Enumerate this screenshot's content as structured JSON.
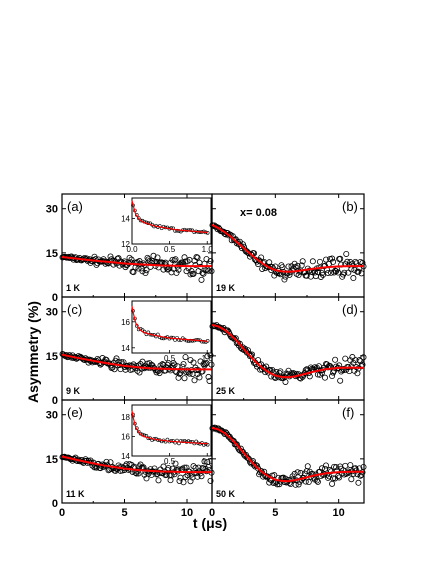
{
  "chart_data": {
    "type": "scatter",
    "xlabel": "t (μs)",
    "ylabel": "Asymmetry (%)",
    "annotation": "x= 0.08",
    "xlim": [
      0,
      12
    ],
    "ylim": [
      0,
      35
    ],
    "xticks": [
      0,
      5,
      10
    ],
    "yticks": [
      0,
      15,
      30
    ],
    "xtick_labels": [
      "0",
      "5",
      "10"
    ],
    "ytick_labels": [
      "0",
      "15",
      "30"
    ],
    "fit_color": "#ff0000",
    "marker_style": "open-circle",
    "panels": [
      {
        "label": "(a)",
        "temperature": "1 K",
        "fit": {
          "x": [
            0,
            1,
            2,
            3,
            4,
            5,
            6,
            7,
            8,
            9,
            10,
            11,
            12
          ],
          "y": [
            13.6,
            13.1,
            12.6,
            12.2,
            11.8,
            11.4,
            11.1,
            10.9,
            10.7,
            10.6,
            10.5,
            10.5,
            10.5
          ]
        },
        "inset": {
          "xlim": [
            0,
            1.05
          ],
          "ylim": [
            12,
            15.6
          ],
          "xticks": [
            0.0,
            0.5,
            1.0
          ],
          "xtick_labels": [
            "0.0",
            "0.5",
            "1.0"
          ],
          "yticks": [
            12,
            14
          ],
          "ytick_labels": [
            "12",
            "14"
          ],
          "fit": {
            "x": [
              0,
              0.02,
              0.05,
              0.1,
              0.15,
              0.2,
              0.3,
              0.4,
              0.5,
              0.6,
              0.7,
              0.8,
              0.9,
              1.0
            ],
            "y": [
              15.4,
              14.9,
              14.3,
              13.9,
              13.7,
              13.6,
              13.4,
              13.3,
              13.2,
              13.1,
              13.05,
              13.0,
              12.95,
              12.9
            ]
          }
        }
      },
      {
        "label": "(b)",
        "temperature": "19 K",
        "fit": {
          "x": [
            0,
            0.5,
            1,
            1.5,
            2,
            2.5,
            3,
            3.5,
            4,
            4.5,
            5,
            5.5,
            6,
            6.5,
            7,
            8,
            9,
            10,
            11,
            12
          ],
          "y": [
            24.5,
            23.4,
            22.0,
            20.4,
            18.5,
            16.6,
            14.7,
            12.9,
            11.3,
            10.0,
            9.1,
            8.7,
            8.6,
            8.7,
            9.0,
            9.6,
            10.1,
            10.4,
            10.5,
            10.5
          ]
        }
      },
      {
        "label": "(c)",
        "temperature": "9 K",
        "fit": {
          "x": [
            0,
            1,
            2,
            3,
            4,
            5,
            6,
            7,
            8,
            9,
            10,
            11,
            12
          ],
          "y": [
            15.4,
            14.5,
            13.7,
            12.9,
            12.2,
            11.6,
            11.1,
            10.8,
            10.6,
            10.5,
            10.4,
            10.4,
            10.4
          ]
        },
        "inset": {
          "xlim": [
            0,
            1.05
          ],
          "ylim": [
            13.6,
            17.6
          ],
          "xticks": [
            0.5,
            1.0
          ],
          "xtick_labels": [
            "0.5",
            "1.0"
          ],
          "yticks": [
            14,
            16
          ],
          "ytick_labels": [
            "14",
            "16"
          ],
          "fit": {
            "x": [
              0,
              0.02,
              0.05,
              0.1,
              0.15,
              0.2,
              0.3,
              0.4,
              0.5,
              0.6,
              0.7,
              0.8,
              0.9,
              1.0
            ],
            "y": [
              17.2,
              16.6,
              15.9,
              15.4,
              15.2,
              15.1,
              14.95,
              14.85,
              14.75,
              14.7,
              14.65,
              14.6,
              14.55,
              14.5
            ]
          }
        }
      },
      {
        "label": "(d)",
        "temperature": "25 K",
        "fit": {
          "x": [
            0,
            0.5,
            1,
            1.5,
            2,
            2.5,
            3,
            3.5,
            4,
            4.5,
            5,
            5.5,
            6,
            6.5,
            7,
            8,
            9,
            10,
            11,
            12
          ],
          "y": [
            25.5,
            25.0,
            23.8,
            22.0,
            19.8,
            17.3,
            14.9,
            12.7,
            10.8,
            9.3,
            8.3,
            7.8,
            7.7,
            8.0,
            8.5,
            9.6,
            10.5,
            10.9,
            11.0,
            10.9
          ]
        }
      },
      {
        "label": "(e)",
        "temperature": "11 K",
        "fit": {
          "x": [
            0,
            1,
            2,
            3,
            4,
            5,
            6,
            7,
            8,
            9,
            10,
            11,
            12
          ],
          "y": [
            15.8,
            14.8,
            13.9,
            13.0,
            12.3,
            11.7,
            11.2,
            10.9,
            10.7,
            10.6,
            10.5,
            10.5,
            10.5
          ]
        },
        "inset": {
          "xlim": [
            0,
            1.05
          ],
          "ylim": [
            14,
            19.2
          ],
          "xticks": [
            0.5,
            1.0
          ],
          "xtick_labels": [
            "0.5",
            "1.0"
          ],
          "yticks": [
            14,
            16,
            18
          ],
          "ytick_labels": [
            "14",
            "16",
            "18"
          ],
          "fit": {
            "x": [
              0,
              0.02,
              0.05,
              0.1,
              0.15,
              0.2,
              0.3,
              0.4,
              0.5,
              0.6,
              0.7,
              0.8,
              0.9,
              1.0
            ],
            "y": [
              18.6,
              17.8,
              16.9,
              16.3,
              16.0,
              15.9,
              15.7,
              15.6,
              15.5,
              15.45,
              15.4,
              15.35,
              15.3,
              15.25
            ]
          }
        }
      },
      {
        "label": "(f)",
        "temperature": "50 K",
        "fit": {
          "x": [
            0,
            0.5,
            1,
            1.5,
            2,
            2.5,
            3,
            3.5,
            4,
            4.5,
            5,
            5.5,
            6,
            6.5,
            7,
            8,
            9,
            10,
            11,
            12
          ],
          "y": [
            25.5,
            25.0,
            23.7,
            21.8,
            19.5,
            17.0,
            14.5,
            12.2,
            10.3,
            8.9,
            7.9,
            7.5,
            7.4,
            7.7,
            8.2,
            9.3,
            10.1,
            10.5,
            10.6,
            10.6
          ]
        }
      }
    ]
  }
}
